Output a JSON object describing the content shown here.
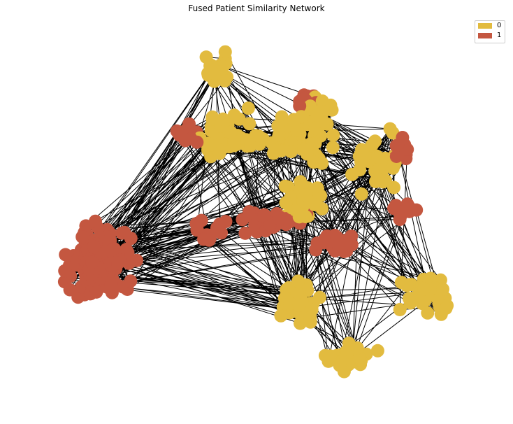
{
  "title": "Fused Patient Similarity Network",
  "colors": {
    "class0": "#E2BB3F",
    "class1": "#C45740",
    "edge": "#000000"
  },
  "legend": [
    {
      "label": "0",
      "color": "#E2BB3F"
    },
    {
      "label": "1",
      "color": "#C45740"
    }
  ]
}
